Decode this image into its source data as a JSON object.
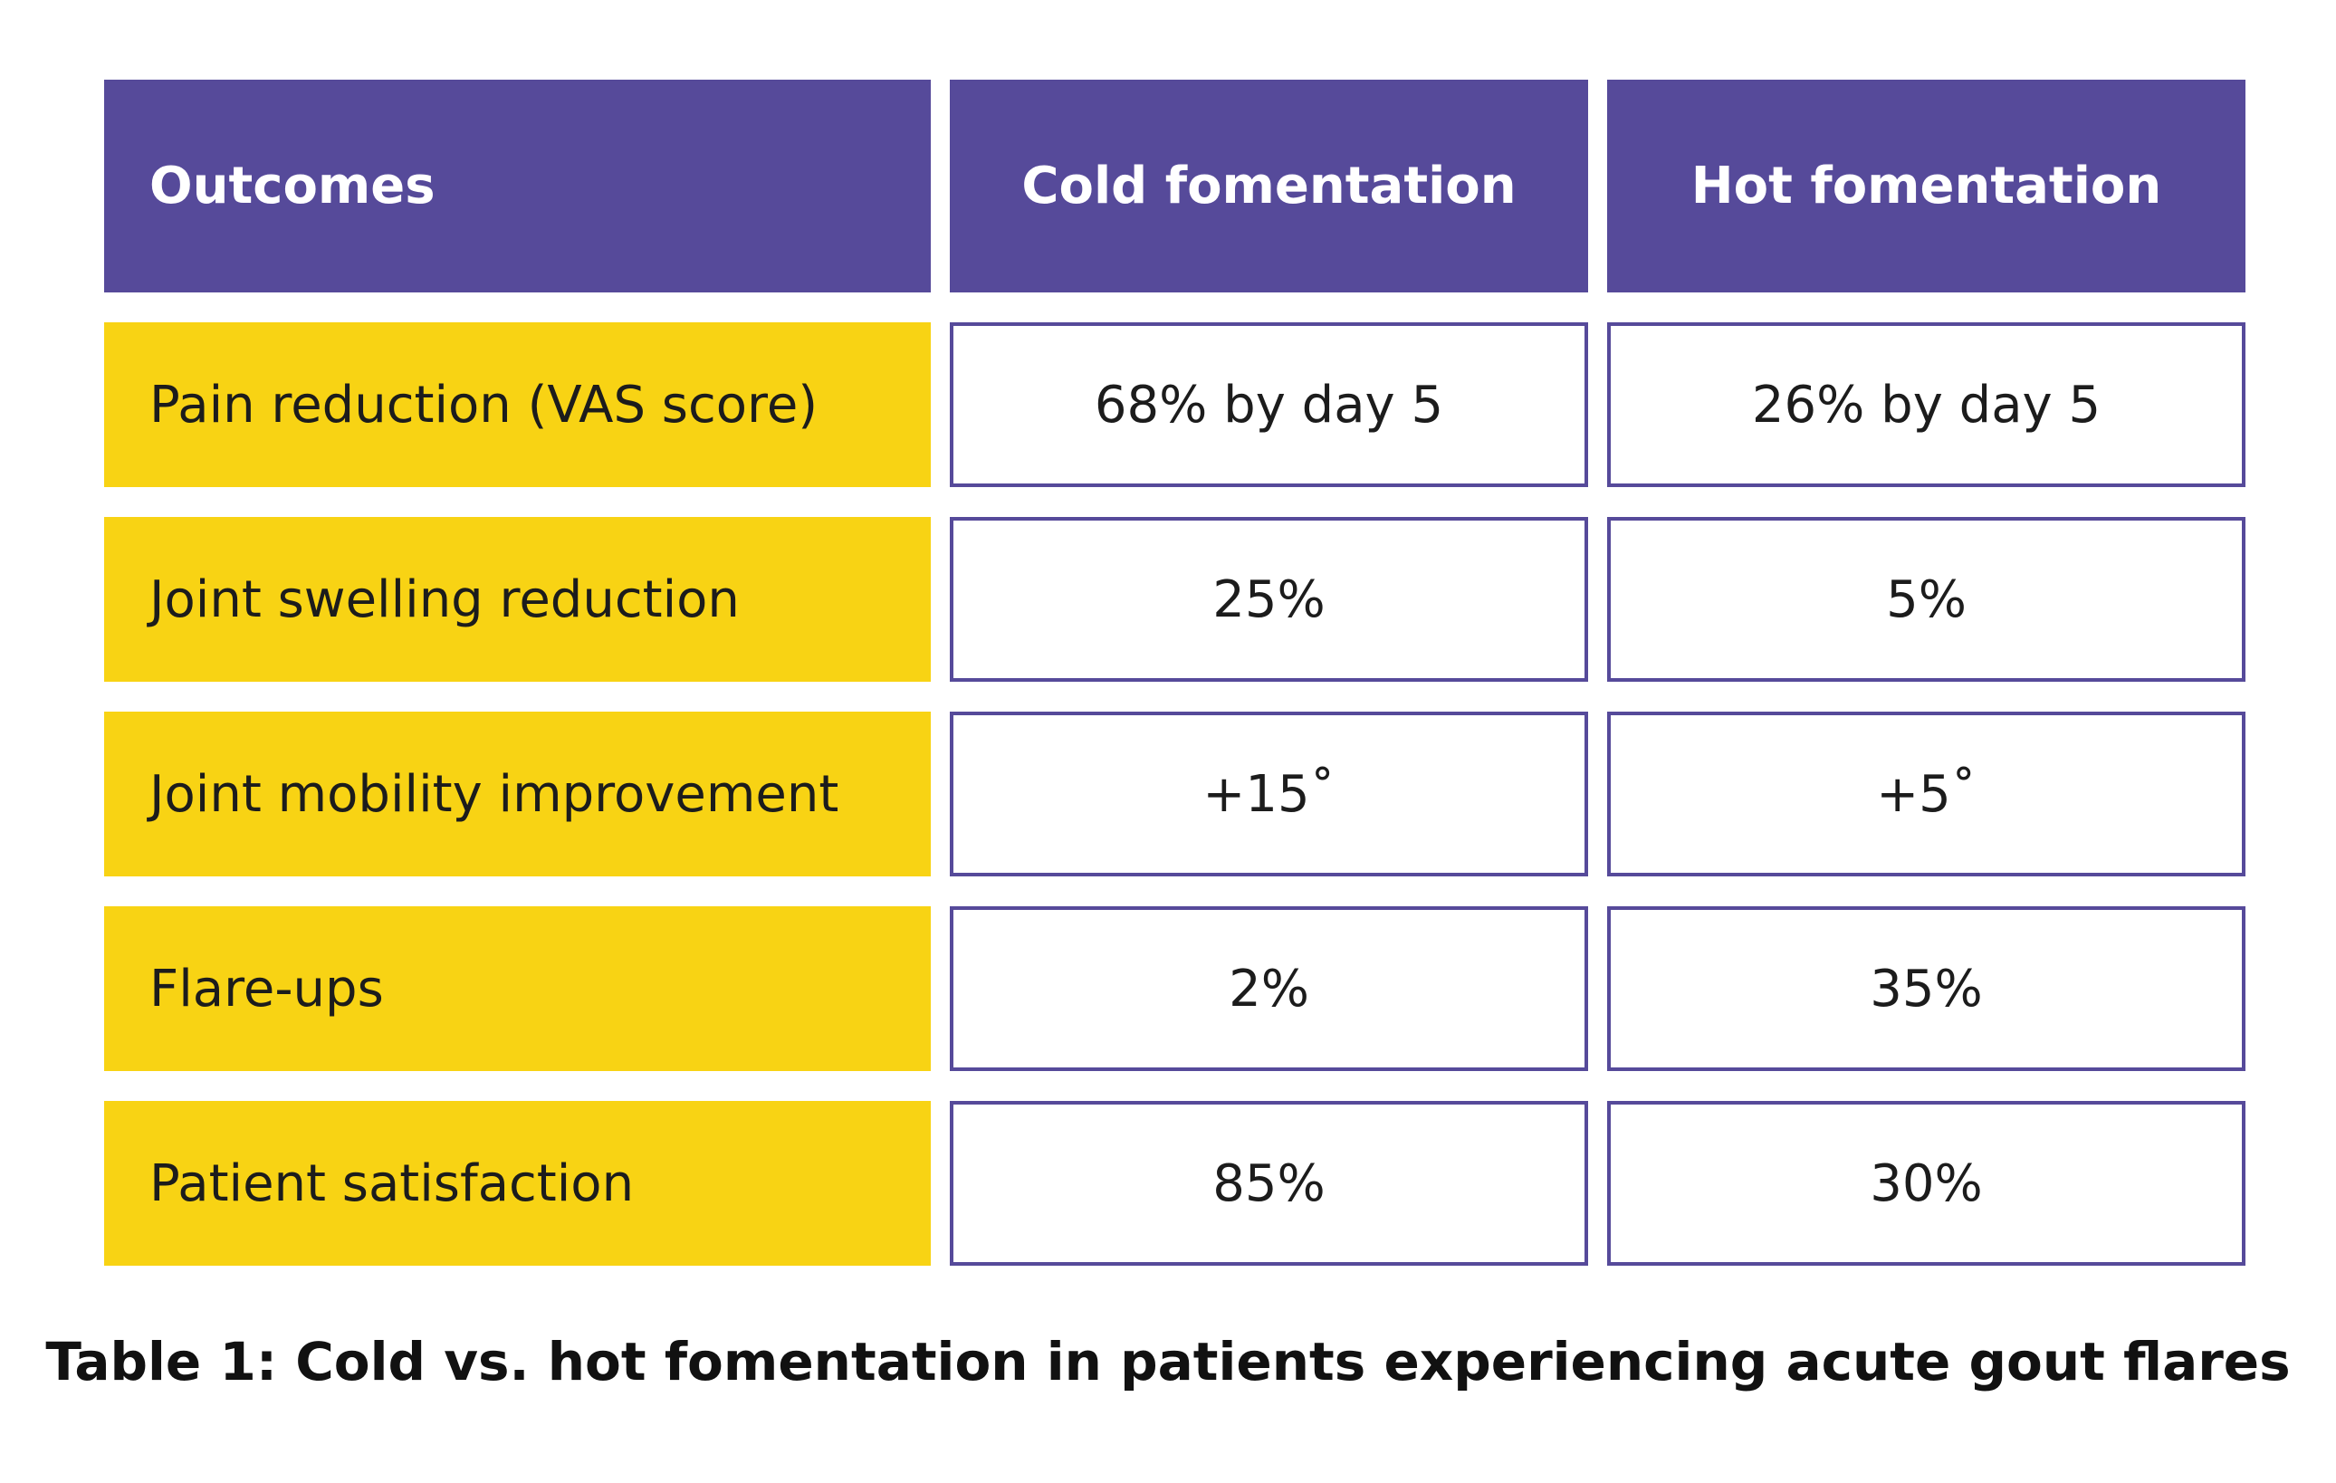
{
  "colors": {
    "header_bg": "#564a9a",
    "label_bg": "#f8d314",
    "cell_border": "#564a9a"
  },
  "table": {
    "headers": [
      "Outcomes",
      "Cold fomentation",
      "Hot fomentation"
    ],
    "rows": [
      {
        "label": "Pain reduction (VAS score)",
        "cold": "68% by day 5",
        "hot": "26% by day 5"
      },
      {
        "label": "Joint swelling reduction",
        "cold": "25%",
        "hot": "5%"
      },
      {
        "label": "Joint mobility improvement",
        "cold": "+15˚",
        "hot": "+5˚"
      },
      {
        "label": "Flare-ups",
        "cold": "2%",
        "hot": "35%"
      },
      {
        "label": "Patient satisfaction",
        "cold": "85%",
        "hot": "30%"
      }
    ]
  },
  "caption": "Table 1: Cold vs. hot fomentation in patients experiencing acute gout flares"
}
